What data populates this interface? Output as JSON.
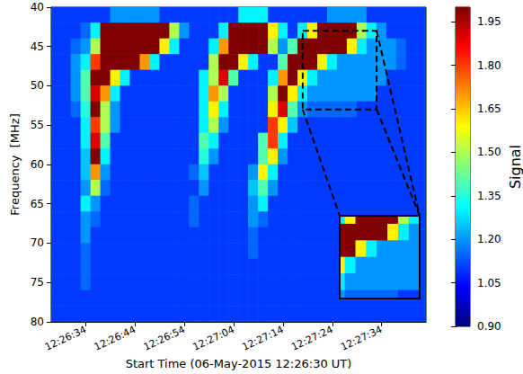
{
  "chart_data": {
    "type": "heatmap",
    "x_label": "Start Time (06-May-2015 12:26:30 UT)",
    "y_label": "Frequency  [MHz]",
    "xlim": [
      27,
      103
    ],
    "xticks": [
      {
        "value": 34,
        "label": "12:26:34"
      },
      {
        "value": 44,
        "label": "12:26:44"
      },
      {
        "value": 54,
        "label": "12:26:54"
      },
      {
        "value": 64,
        "label": "12:27:04"
      },
      {
        "value": 74,
        "label": "12:27:14"
      },
      {
        "value": 84,
        "label": "12:27:24"
      },
      {
        "value": 94,
        "label": "12:27:34"
      }
    ],
    "ylim": [
      40,
      80
    ],
    "yticks": [
      40,
      45,
      50,
      55,
      60,
      65,
      70,
      75,
      80
    ],
    "x": [
      28,
      30,
      32,
      34,
      36,
      38,
      40,
      42,
      44,
      46,
      48,
      50,
      52,
      54,
      56,
      58,
      60,
      62,
      64,
      66,
      68,
      70,
      72,
      74,
      76,
      78,
      80,
      82,
      84,
      86,
      88,
      90,
      92,
      94,
      96,
      98,
      100,
      102
    ],
    "y": [
      41,
      43,
      45,
      47,
      49,
      51,
      53,
      55,
      57,
      59,
      61,
      63,
      65,
      67,
      69,
      71,
      73,
      75,
      77,
      79
    ],
    "cells": [
      [
        1.1,
        1.1,
        1.1,
        1.1,
        1.1,
        1.1,
        1.2,
        1.2,
        1.2,
        1.2,
        1.2,
        1.1,
        1.1,
        1.1,
        1.1,
        1.1,
        1.1,
        1.1,
        1.1,
        1.3,
        1.3,
        1.3,
        1.1,
        1.1,
        1.1,
        1.1,
        1.1,
        1.1,
        1.2,
        1.2,
        1.2,
        1.2,
        1.1,
        1.1,
        1.1,
        1.1,
        1.1,
        1.1
      ],
      [
        1.1,
        1.1,
        1.1,
        1.15,
        1.3,
        2,
        2,
        2,
        2,
        2,
        2,
        2,
        1.5,
        1.2,
        1.1,
        1.1,
        1.1,
        1.3,
        2,
        2,
        2,
        2,
        1.6,
        1.3,
        1.1,
        1.3,
        1.6,
        2,
        2,
        2,
        2,
        1.5,
        1.3,
        1.2,
        1.1,
        1.1,
        1.1,
        1.1
      ],
      [
        1.1,
        1.1,
        1.15,
        1.2,
        1.5,
        2,
        2,
        2,
        2,
        2,
        2,
        1.6,
        1.3,
        1.1,
        1.1,
        1.1,
        1.3,
        1.7,
        2,
        2,
        2,
        2,
        1.5,
        1.2,
        1.4,
        2,
        2,
        2,
        2,
        2,
        1.6,
        1.3,
        1.2,
        1.2,
        1.2,
        1.15,
        1.1,
        1.1
      ],
      [
        1.1,
        1.1,
        1.2,
        1.3,
        1.8,
        2,
        2,
        2,
        2,
        1.7,
        1.3,
        1.1,
        1.1,
        1.1,
        1.1,
        1.1,
        1.5,
        2,
        2,
        1.6,
        1.3,
        1.1,
        1.1,
        1.4,
        2,
        2,
        2,
        1.6,
        1.3,
        1.2,
        1.2,
        1.2,
        1.2,
        1.2,
        1.2,
        1.15,
        1.1,
        1.1
      ],
      [
        1.1,
        1.1,
        1.2,
        1.4,
        2,
        2,
        1.6,
        1.3,
        1.1,
        1.1,
        1.1,
        1.1,
        1.1,
        1.1,
        1.1,
        1.3,
        1.5,
        1.9,
        1.4,
        1.1,
        1.1,
        1.1,
        1.3,
        1.7,
        2,
        1.6,
        1.3,
        1.2,
        1.2,
        1.2,
        1.2,
        1.2,
        1.2,
        1.2,
        1.1,
        1.1,
        1.1,
        1.1
      ],
      [
        1.1,
        1.1,
        1.2,
        1.4,
        1.9,
        1.7,
        1.3,
        1.1,
        1.1,
        1.1,
        1.1,
        1.1,
        1.1,
        1.1,
        1.1,
        1.3,
        1.7,
        1.5,
        1.1,
        1.1,
        1.1,
        1.1,
        1.5,
        2,
        1.6,
        1.3,
        1.2,
        1.2,
        1.2,
        1.2,
        1.2,
        1.2,
        1.2,
        1.1,
        1.1,
        1.1,
        1.1,
        1.1
      ],
      [
        1.1,
        1.1,
        1.15,
        1.35,
        2,
        1.5,
        1.2,
        1.1,
        1.1,
        1.1,
        1.1,
        1.1,
        1.1,
        1.1,
        1.1,
        1.3,
        1.6,
        1.3,
        1.1,
        1.1,
        1.1,
        1.1,
        1.6,
        1.9,
        1.4,
        1.2,
        1.15,
        1.15,
        1.15,
        1.15,
        1.15,
        1.1,
        1.1,
        1.1,
        1.1,
        1.1,
        1.1,
        1.1
      ],
      [
        1.1,
        1.1,
        1.1,
        1.3,
        1.8,
        1.5,
        1.2,
        1.1,
        1.1,
        1.1,
        1.1,
        1.1,
        1.1,
        1.1,
        1.1,
        1.3,
        1.5,
        1.2,
        1.1,
        1.1,
        1.1,
        1.1,
        1.8,
        1.6,
        1.25,
        1.1,
        1.1,
        1.1,
        1.1,
        1.1,
        1.1,
        1.1,
        1.1,
        1.1,
        1.1,
        1.1,
        1.1,
        1.1
      ],
      [
        1.1,
        1.1,
        1.1,
        1.3,
        1.9,
        1.4,
        1.1,
        1.1,
        1.1,
        1.1,
        1.1,
        1.1,
        1.1,
        1.1,
        1.1,
        1.4,
        1.3,
        1.1,
        1.1,
        1.1,
        1.1,
        1.4,
        1.8,
        1.3,
        1.1,
        1.1,
        1.1,
        1.1,
        1.1,
        1.1,
        1.1,
        1.1,
        1.1,
        1.1,
        1.1,
        1.1,
        1.1,
        1.1
      ],
      [
        1.1,
        1.1,
        1.1,
        1.25,
        2,
        1.3,
        1.1,
        1.1,
        1.1,
        1.1,
        1.1,
        1.1,
        1.1,
        1.1,
        1.1,
        1.35,
        1.2,
        1.1,
        1.1,
        1.1,
        1.1,
        1.4,
        1.6,
        1.2,
        1.1,
        1.1,
        1.1,
        1.1,
        1.1,
        1.1,
        1.1,
        1.1,
        1.1,
        1.1,
        1.1,
        1.1,
        1.1,
        1.1
      ],
      [
        1.1,
        1.1,
        1.1,
        1.25,
        1.7,
        1.2,
        1.1,
        1.1,
        1.1,
        1.1,
        1.1,
        1.1,
        1.1,
        1.1,
        1.15,
        1.25,
        1.1,
        1.1,
        1.1,
        1.1,
        1.2,
        1.6,
        1.3,
        1.1,
        1.1,
        1.1,
        1.1,
        1.1,
        1.1,
        1.1,
        1.1,
        1.1,
        1.1,
        1.1,
        1.1,
        1.1,
        1.1,
        1.1
      ],
      [
        1.1,
        1.1,
        1.1,
        1.2,
        1.5,
        1.15,
        1.1,
        1.1,
        1.1,
        1.1,
        1.1,
        1.1,
        1.1,
        1.1,
        1.1,
        1.2,
        1.1,
        1.1,
        1.1,
        1.1,
        1.25,
        1.4,
        1.2,
        1.1,
        1.1,
        1.1,
        1.1,
        1.1,
        1.1,
        1.1,
        1.1,
        1.1,
        1.1,
        1.1,
        1.1,
        1.1,
        1.1,
        1.1
      ],
      [
        1.1,
        1.1,
        1.1,
        1.3,
        1.2,
        1.1,
        1.1,
        1.1,
        1.1,
        1.1,
        1.1,
        1.1,
        1.1,
        1.1,
        1.15,
        1.1,
        1.1,
        1.1,
        1.1,
        1.1,
        1.2,
        1.3,
        1.1,
        1.1,
        1.1,
        1.1,
        1.1,
        1.1,
        1.1,
        1.1,
        1.1,
        1.1,
        1.1,
        1.1,
        1.1,
        1.1,
        1.1,
        1.1
      ],
      [
        1.1,
        1.1,
        1.1,
        1.2,
        1.15,
        1.1,
        1.1,
        1.1,
        1.1,
        1.1,
        1.1,
        1.1,
        1.1,
        1.1,
        1.15,
        1.1,
        1.1,
        1.1,
        1.1,
        1.1,
        1.2,
        1.15,
        1.1,
        1.1,
        1.1,
        1.1,
        1.1,
        1.1,
        1.1,
        1.1,
        1.1,
        1.1,
        1.1,
        1.1,
        1.1,
        1.1,
        1.1,
        1.1
      ],
      [
        1.1,
        1.1,
        1.1,
        1.2,
        1.1,
        1.1,
        1.1,
        1.1,
        1.1,
        1.1,
        1.1,
        1.1,
        1.1,
        1.1,
        1.1,
        1.1,
        1.1,
        1.1,
        1.1,
        1.1,
        1.15,
        1.1,
        1.1,
        1.1,
        1.1,
        1.1,
        1.1,
        1.1,
        1.1,
        1.1,
        1.1,
        1.1,
        1.1,
        1.1,
        1.1,
        1.1,
        1.1,
        1.1
      ],
      [
        1.1,
        1.1,
        1.1,
        1.15,
        1.1,
        1.1,
        1.1,
        1.1,
        1.1,
        1.1,
        1.1,
        1.1,
        1.1,
        1.1,
        1.1,
        1.1,
        1.1,
        1.1,
        1.1,
        1.1,
        1.15,
        1.1,
        1.1,
        1.1,
        1.1,
        1.1,
        1.1,
        1.1,
        1.1,
        1.1,
        1.1,
        1.1,
        1.1,
        1.1,
        1.1,
        1.1,
        1.1,
        1.1
      ],
      [
        1.1,
        1.1,
        1.1,
        1.15,
        1.1,
        1.1,
        1.1,
        1.1,
        1.1,
        1.1,
        1.1,
        1.1,
        1.1,
        1.1,
        1.1,
        1.1,
        1.1,
        1.1,
        1.1,
        1.1,
        1.1,
        1.1,
        1.1,
        1.1,
        1.1,
        1.1,
        1.1,
        1.1,
        1.1,
        1.1,
        1.1,
        1.1,
        1.1,
        1.1,
        1.1,
        1.1,
        1.1,
        1.1
      ],
      [
        1.1,
        1.1,
        1.1,
        1.15,
        1.1,
        1.1,
        1.1,
        1.1,
        1.1,
        1.1,
        1.1,
        1.1,
        1.1,
        1.1,
        1.1,
        1.1,
        1.1,
        1.1,
        1.1,
        1.1,
        1.1,
        1.1,
        1.1,
        1.1,
        1.1,
        1.1,
        1.1,
        1.1,
        1.1,
        1.1,
        1.1,
        1.1,
        1.1,
        1.1,
        1.1,
        1.1,
        1.1,
        1.1
      ],
      [
        1.1,
        1.1,
        1.1,
        1.1,
        1.1,
        1.1,
        1.1,
        1.1,
        1.1,
        1.1,
        1.1,
        1.1,
        1.1,
        1.1,
        1.1,
        1.1,
        1.1,
        1.1,
        1.1,
        1.1,
        1.1,
        1.1,
        1.1,
        1.1,
        1.1,
        1.1,
        1.1,
        1.1,
        1.1,
        1.1,
        1.1,
        1.1,
        1.1,
        1.1,
        1.1,
        1.1,
        1.1,
        1.1
      ],
      [
        1.1,
        1.1,
        1.1,
        1.1,
        1.1,
        1.1,
        1.1,
        1.1,
        1.1,
        1.1,
        1.1,
        1.1,
        1.1,
        1.1,
        1.1,
        1.1,
        1.1,
        1.1,
        1.1,
        1.1,
        1.1,
        1.1,
        1.1,
        1.1,
        1.1,
        1.1,
        1.1,
        1.1,
        1.1,
        1.1,
        1.1,
        1.1,
        1.1,
        1.1,
        1.1,
        1.1,
        1.1,
        1.1
      ]
    ],
    "color_label": "Signal",
    "color_range": [
      0.9,
      2.0
    ],
    "color_ticks": [
      {
        "value": 0.9,
        "label": "0.90"
      },
      {
        "value": 1.05,
        "label": "1.05"
      },
      {
        "value": 1.2,
        "label": "1.20"
      },
      {
        "value": 1.35,
        "label": "1.35"
      },
      {
        "value": 1.5,
        "label": "1.50"
      },
      {
        "value": 1.65,
        "label": "1.65"
      },
      {
        "value": 1.8,
        "label": "1.80"
      },
      {
        "value": 1.95,
        "label": "1.95"
      }
    ],
    "inset": {
      "xlim": [
        78,
        93
      ],
      "ylim": [
        43,
        53
      ]
    }
  }
}
